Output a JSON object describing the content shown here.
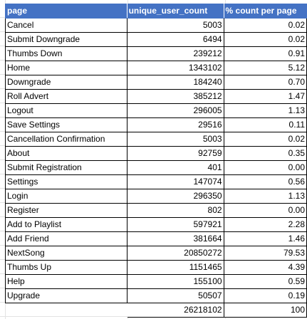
{
  "table": {
    "headers": [
      "page",
      "unique_user_count",
      "% count per page"
    ],
    "rows": [
      {
        "page": "Cancel",
        "count": "5003",
        "pct": "0.02"
      },
      {
        "page": "Submit Downgrade",
        "count": "6494",
        "pct": "0.02"
      },
      {
        "page": "Thumbs Down",
        "count": "239212",
        "pct": "0.91"
      },
      {
        "page": "Home",
        "count": "1343102",
        "pct": "5.12"
      },
      {
        "page": "Downgrade",
        "count": "184240",
        "pct": "0.70"
      },
      {
        "page": "Roll Advert",
        "count": "385212",
        "pct": "1.47"
      },
      {
        "page": "Logout",
        "count": "296005",
        "pct": "1.13"
      },
      {
        "page": "Save Settings",
        "count": "29516",
        "pct": "0.11"
      },
      {
        "page": "Cancellation Confirmation",
        "count": "5003",
        "pct": "0.02"
      },
      {
        "page": "About",
        "count": "92759",
        "pct": "0.35"
      },
      {
        "page": "Submit Registration",
        "count": "401",
        "pct": "0.00"
      },
      {
        "page": "Settings",
        "count": "147074",
        "pct": "0.56"
      },
      {
        "page": "Login",
        "count": "296350",
        "pct": "1.13"
      },
      {
        "page": "Register",
        "count": "802",
        "pct": "0.00"
      },
      {
        "page": "Add to Playlist",
        "count": "597921",
        "pct": "2.28"
      },
      {
        "page": "Add Friend",
        "count": "381664",
        "pct": "1.46"
      },
      {
        "page": "NextSong",
        "count": "20850272",
        "pct": "79.53"
      },
      {
        "page": "Thumbs Up",
        "count": "1151465",
        "pct": "4.39"
      },
      {
        "page": "Help",
        "count": "155100",
        "pct": "0.59"
      },
      {
        "page": "Upgrade",
        "count": "50507",
        "pct": "0.19"
      }
    ],
    "totals": {
      "count": "26218102",
      "pct": "100"
    }
  },
  "colors": {
    "header_bg": "#4472c4",
    "header_text": "#ffffff",
    "gridline": "#e3e3e3",
    "border": "#000000"
  }
}
